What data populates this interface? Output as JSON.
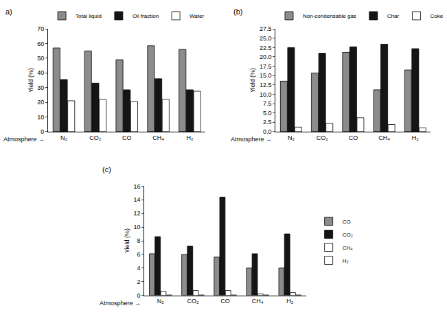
{
  "chart_data": [
    {
      "type": "bar",
      "title": "a)",
      "x_label": "Atmosphere →",
      "y_label": "Yield (%)",
      "categories": [
        "N₂",
        "CO₂",
        "CO",
        "CH₄",
        "H₂"
      ],
      "series": [
        {
          "name": "Total liquid",
          "color": "#8c8c8c",
          "values": [
            57,
            55,
            49,
            58.5,
            56
          ]
        },
        {
          "name": "Oil fraction",
          "color": "#151515",
          "values": [
            35.5,
            33,
            28.5,
            36,
            28.5
          ]
        },
        {
          "name": "Water",
          "color": "#ffffff",
          "values": [
            21,
            22,
            20.5,
            22,
            27.5
          ]
        }
      ],
      "ylim": [
        0,
        70
      ],
      "yticks": [
        0,
        10,
        20,
        30,
        40,
        50,
        60,
        70
      ],
      "grid": false,
      "legend": "top"
    },
    {
      "type": "bar",
      "title": "(b)",
      "x_label": "Atmosphere →",
      "y_label": "Yield (%)",
      "categories": [
        "N₂",
        "CO₂",
        "CO",
        "CH₄",
        "H₂"
      ],
      "series": [
        {
          "name": "Non-condensable gas",
          "color": "#8c8c8c",
          "values": [
            13.5,
            15.7,
            21.2,
            11.2,
            16.5
          ]
        },
        {
          "name": "Char",
          "color": "#151515",
          "values": [
            22.5,
            21,
            22.7,
            23.4,
            22.2
          ]
        },
        {
          "name": "Coke",
          "color": "#ffffff",
          "values": [
            1.2,
            2.2,
            3.7,
            1.9,
            1.0
          ]
        }
      ],
      "ylim": [
        0,
        27.5
      ],
      "yticks": [
        {
          "value": 0,
          "label": "0.0"
        },
        2.5,
        {
          "value": 5,
          "label": "5.0"
        },
        7.5,
        {
          "value": 10,
          "label": "10.0"
        },
        12.5,
        {
          "value": 15,
          "label": "15.0"
        },
        17.5,
        {
          "value": 20,
          "label": "20.0"
        },
        22.5,
        {
          "value": 25,
          "label": "25.0"
        },
        27.5
      ],
      "grid": false,
      "legend": "top"
    },
    {
      "type": "bar",
      "title": "(c)",
      "x_label": "Atmosphere →",
      "y_label": "Yield (%)",
      "categories": [
        "N₂",
        "CO₂",
        "CO",
        "CH₄",
        "H₂"
      ],
      "series": [
        {
          "name": "CO",
          "color": "#8c8c8c",
          "values": [
            6.1,
            6.0,
            5.6,
            4.0,
            4.0
          ]
        },
        {
          "name": "CO₂",
          "color": "#151515",
          "values": [
            8.6,
            7.2,
            14.4,
            6.1,
            9.0
          ]
        },
        {
          "name": "CH₄",
          "color": "#ffffff",
          "values": [
            0.6,
            0.7,
            0.7,
            0.2,
            0.4
          ]
        },
        {
          "name": "H₂",
          "color": "#ffffff",
          "values": [
            0.05,
            0.05,
            0.05,
            0.05,
            0.05
          ]
        }
      ],
      "ylim": [
        0,
        16
      ],
      "yticks": [
        0,
        2,
        4,
        6,
        8,
        10,
        12,
        14,
        16
      ],
      "grid": false,
      "legend": "right"
    }
  ]
}
